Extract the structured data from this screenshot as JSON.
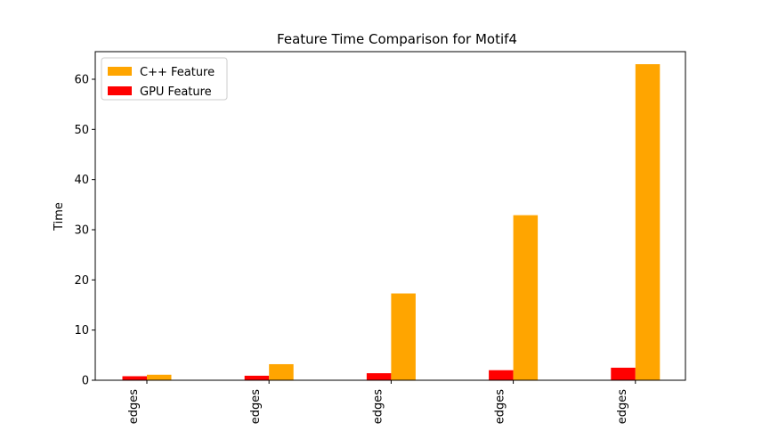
{
  "chart_data": {
    "type": "bar",
    "title": "Feature Time Comparison for Motif4",
    "xlabel": "",
    "ylabel": "Time",
    "ylim": [
      0,
      65.5
    ],
    "yticks": [
      0,
      10,
      20,
      30,
      40,
      50,
      60
    ],
    "categories": [
      "edges",
      "edges",
      "edges",
      "edges",
      "edges"
    ],
    "series": [
      {
        "name": "GPU Feature",
        "color": "#ff0000",
        "values": [
          0.8,
          0.9,
          1.4,
          2.0,
          2.5
        ]
      },
      {
        "name": "C++ Feature",
        "color": "#ffa500",
        "values": [
          1.1,
          3.2,
          17.3,
          32.9,
          63.0
        ]
      }
    ],
    "legend": {
      "placement": "top-left",
      "entries": [
        {
          "label": "C++ Feature",
          "color": "#ffa500"
        },
        {
          "label": "GPU Feature",
          "color": "#ff0000"
        }
      ]
    },
    "grid": false
  }
}
